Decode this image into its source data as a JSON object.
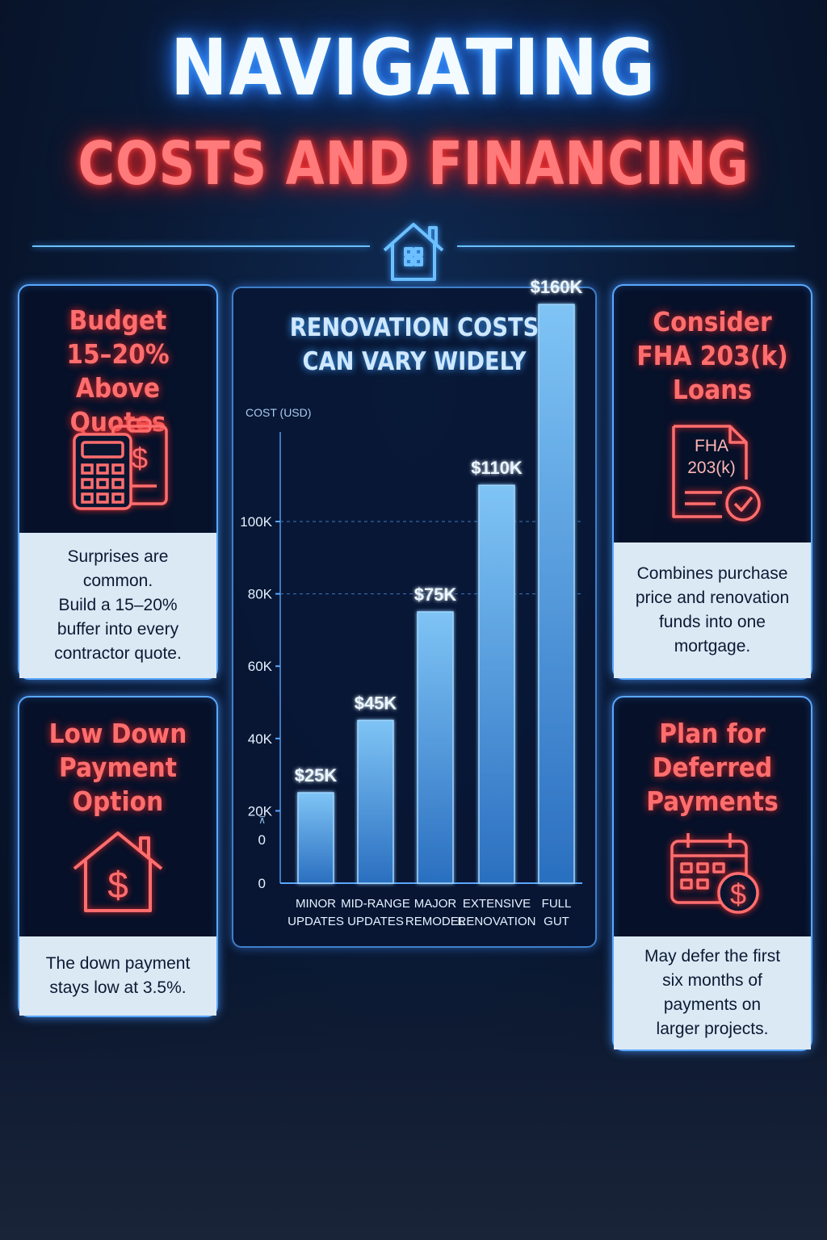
{
  "title": {
    "line1": "NAVIGATING",
    "line2": "COSTS AND FINANCING"
  },
  "cards": {
    "budget": {
      "heading": "Budget\n15–20%\nAbove Quotes",
      "body": "Surprises are\ncommon.\nBuild a 15–20%\nbuffer into every\ncontractor quote."
    },
    "down_payment": {
      "heading": "Low Down\nPayment\nOption",
      "body": "The down payment\nstays low at 3.5%."
    },
    "fha": {
      "heading": "Consider\nFHA 203(k)\nLoans",
      "doc_label": "FHA\n203(k)",
      "body": "Combines purchase\nprice and renovation\nfunds into one\nmortgage."
    },
    "deferred": {
      "heading": "Plan for\nDeferred\nPayments",
      "body": "May defer the first\nsix months of\npayments on\nlarger projects."
    }
  },
  "colors": {
    "accent_blue": "#5aa8ff",
    "accent_red": "#ff6e6e",
    "bar": "#4aa3e8"
  },
  "icons": [
    "house-icon",
    "calculator-icon",
    "clipboard-dollar-icon",
    "house-dollar-icon",
    "document-check-icon",
    "calendar-dollar-icon"
  ],
  "chart_data": {
    "type": "bar",
    "title": "RENOVATION COSTS\nCAN VARY WIDELY",
    "ylabel": "COST (USD)",
    "categories": [
      "MINOR UPDATES",
      "MID-RANGE UPDATES",
      "MAJOR REMODEL",
      "EXTENSIVE RENOVATION",
      "FULL GUT"
    ],
    "category_lines": [
      [
        "MINOR",
        "UPDATES"
      ],
      [
        "MID-RANGE",
        "UPDATES"
      ],
      [
        "MAJOR",
        "REMODEL"
      ],
      [
        "EXTENSIVE",
        "RENOVATION"
      ],
      [
        "FULL",
        "GUT"
      ]
    ],
    "values": [
      25000,
      45000,
      75000,
      110000,
      160000
    ],
    "data_labels": [
      "$25K",
      "$45K",
      "$75K",
      "$110K",
      "$160K"
    ],
    "yticks": [
      {
        "value": 0,
        "label": "0"
      },
      {
        "value": 20000,
        "label": "20K"
      },
      {
        "value": 40000,
        "label": "40K"
      },
      {
        "value": 60000,
        "label": "60K"
      },
      {
        "value": 80000,
        "label": "80K"
      },
      {
        "value": 100000,
        "label": "100K"
      }
    ],
    "extra_tick_labels": [
      "0",
      "⊼"
    ],
    "grid": "dashed lines at 80K and 100K",
    "legend": "none"
  }
}
